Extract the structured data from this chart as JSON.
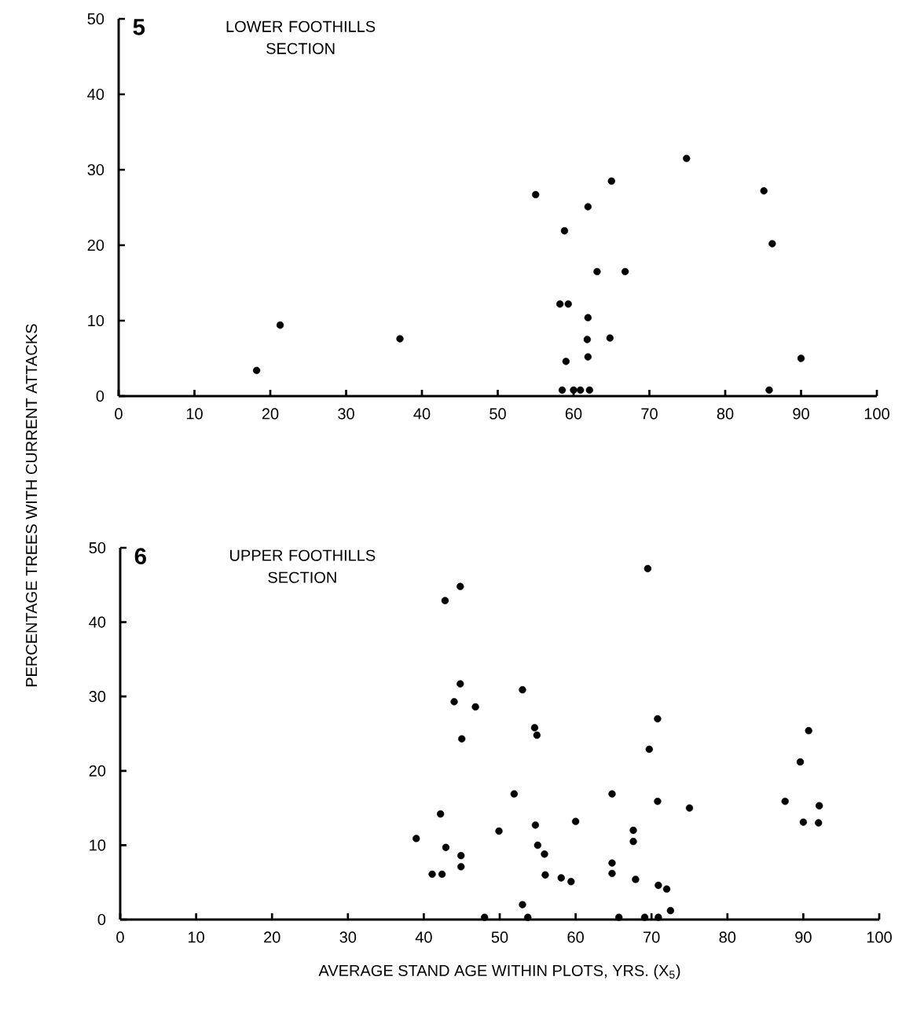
{
  "chart_data": [
    {
      "type": "scatter",
      "title": "5",
      "subtitle": "LOWER FOOTHILLS SECTION",
      "ylabel": "PERCENTAGE TREES WITH CURRENT ATTACKS",
      "x": [
        18.2,
        21.3,
        37.1,
        55.0,
        65.0,
        74.9,
        61.9,
        85.1,
        58.8,
        86.2,
        63.1,
        66.8,
        58.2,
        59.3,
        61.9,
        61.8,
        64.8,
        59.0,
        61.9,
        90.0,
        58.5,
        60.0,
        60.9,
        62.1,
        85.8
      ],
      "values": [
        3.4,
        9.4,
        7.6,
        26.7,
        28.5,
        31.5,
        25.1,
        27.2,
        21.9,
        20.2,
        16.5,
        16.5,
        12.2,
        12.2,
        10.4,
        7.5,
        7.7,
        4.6,
        5.2,
        5.0,
        0.8,
        0.8,
        0.8,
        0.8,
        0.8
      ],
      "color": "#000000",
      "marker": "circle",
      "xlim": [
        0,
        100
      ],
      "ylim": [
        0,
        50
      ],
      "xticks": [
        0,
        10,
        20,
        30,
        40,
        50,
        60,
        70,
        80,
        90,
        100
      ],
      "yticks": [
        0,
        10,
        20,
        30,
        40,
        50
      ]
    },
    {
      "type": "scatter",
      "title": "6",
      "subtitle": "UPPER FOOTHILLS SECTION",
      "xlabel": "AVERAGE STAND AGE WITHIN PLOTS, YRS. (X$_{5}$)",
      "x": [
        44.8,
        42.8,
        44.8,
        44.0,
        46.8,
        45.0,
        42.2,
        39.0,
        49.9,
        42.9,
        44.9,
        44.9,
        41.1,
        42.4,
        48.0,
        69.5,
        53.0,
        70.8,
        54.6,
        54.9,
        69.7,
        90.7,
        89.6,
        51.9,
        64.8,
        70.8,
        75.0,
        87.6,
        92.1,
        90.0,
        92.0,
        54.7,
        60.0,
        67.6,
        67.6,
        55.0,
        55.9,
        56.0,
        58.1,
        59.4,
        64.8,
        64.8,
        67.9,
        70.9,
        72.0,
        53.0,
        72.5,
        53.7,
        65.7,
        69.1,
        70.9
      ],
      "values": [
        44.8,
        42.9,
        31.7,
        29.3,
        28.6,
        24.3,
        14.2,
        10.9,
        11.9,
        9.7,
        8.6,
        7.1,
        6.1,
        6.1,
        0.3,
        47.2,
        30.9,
        27.0,
        25.8,
        24.8,
        22.9,
        25.4,
        21.2,
        16.9,
        16.9,
        15.9,
        15.0,
        15.9,
        15.3,
        13.1,
        13.0,
        12.7,
        13.2,
        12.0,
        10.5,
        10.0,
        8.8,
        6.0,
        5.6,
        5.1,
        7.6,
        6.2,
        5.4,
        4.6,
        4.1,
        2.0,
        1.2,
        0.3,
        0.3,
        0.3,
        0.3
      ],
      "color": "#000000",
      "marker": "circle",
      "xlim": [
        0,
        100
      ],
      "ylim": [
        0,
        50
      ],
      "xticks": [
        0,
        10,
        20,
        30,
        40,
        50,
        60,
        70,
        80,
        90,
        100
      ],
      "yticks": [
        0,
        10,
        20,
        30,
        40,
        50
      ]
    }
  ]
}
